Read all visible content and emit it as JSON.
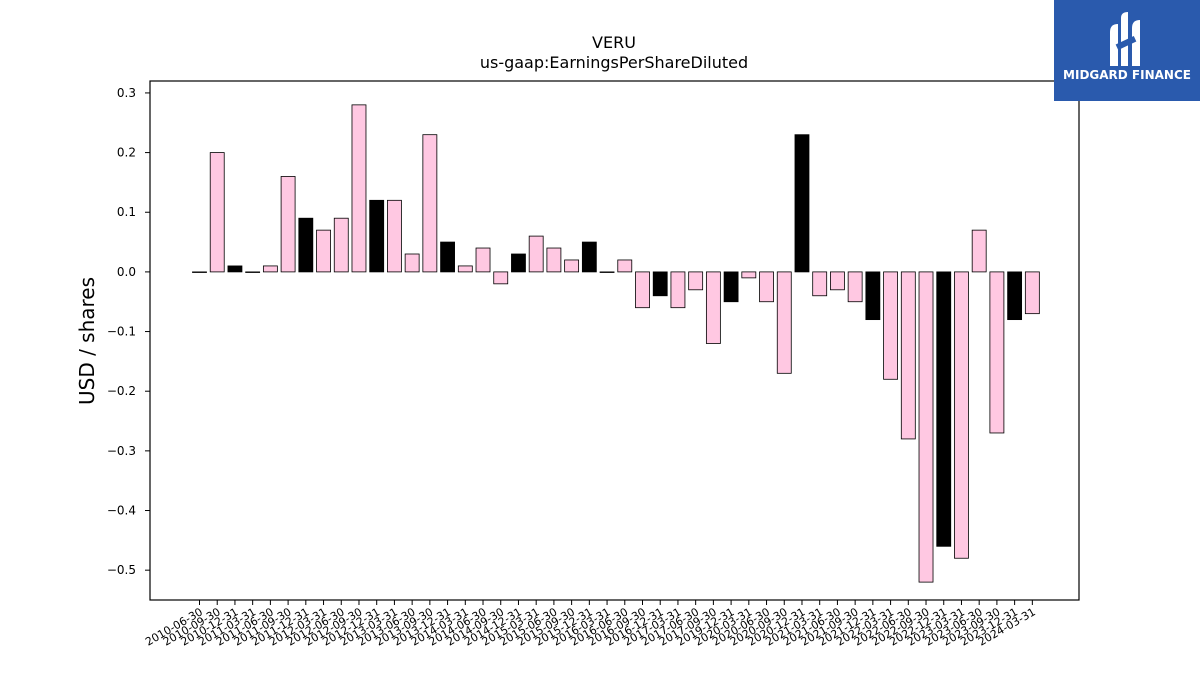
{
  "logo": {
    "text": "MIDGARD FINANCE",
    "bg_color": "#2a5aad"
  },
  "chart_data": {
    "type": "bar",
    "title": "VERU",
    "subtitle": "us-gaap:EarningsPerShareDiluted",
    "ylabel": "USD / shares",
    "xlabel": "",
    "ylim": [
      -0.55,
      0.32
    ],
    "yticks": [
      0.3,
      0.2,
      0.1,
      0.0,
      -0.1,
      -0.2,
      -0.3,
      -0.4,
      -0.5
    ],
    "ytick_labels": [
      "0.3",
      "0.2",
      "0.1",
      "0.0",
      "−0.1",
      "−0.2",
      "−0.3",
      "−0.4",
      "−0.5"
    ],
    "grid": false,
    "colors": {
      "quarterly": "#ffc8e2",
      "annual": "#000000",
      "edge": "#000000"
    },
    "categories": [
      "2010-06-30",
      "2010-09-30",
      "2010-12-31",
      "2011-03-31",
      "2011-06-30",
      "2011-09-30",
      "2011-12-31",
      "2012-03-31",
      "2012-06-30",
      "2012-09-30",
      "2012-12-31",
      "2013-03-31",
      "2013-06-30",
      "2013-09-30",
      "2013-12-31",
      "2014-03-31",
      "2014-06-30",
      "2014-09-30",
      "2014-12-31",
      "2015-03-31",
      "2015-06-30",
      "2015-09-30",
      "2015-12-31",
      "2016-03-31",
      "2016-06-30",
      "2016-09-30",
      "2016-12-31",
      "2017-03-31",
      "2017-06-30",
      "2017-09-30",
      "2019-12-31",
      "2020-03-31",
      "2020-06-30",
      "2020-09-30",
      "2020-12-31",
      "2021-03-31",
      "2021-06-30",
      "2021-09-30",
      "2021-12-31",
      "2022-03-31",
      "2022-06-30",
      "2022-09-30",
      "2022-12-31",
      "2023-03-31",
      "2023-06-30",
      "2023-09-30",
      "2023-12-31",
      "2024-03-31"
    ],
    "values": [
      0.0,
      0.2,
      0.01,
      0.0,
      0.01,
      0.16,
      0.09,
      0.07,
      0.09,
      0.28,
      0.12,
      0.12,
      0.03,
      0.23,
      0.05,
      0.01,
      0.04,
      -0.02,
      0.03,
      0.06,
      0.04,
      0.02,
      0.05,
      0.0,
      0.02,
      -0.06,
      -0.04,
      -0.06,
      -0.03,
      -0.12,
      -0.05,
      -0.01,
      -0.05,
      -0.17,
      0.23,
      -0.04,
      -0.03,
      -0.05,
      -0.08,
      -0.18,
      -0.28,
      -0.52,
      -0.46,
      -0.48,
      0.07,
      -0.27,
      -0.08,
      -0.07
    ],
    "annual": [
      false,
      false,
      true,
      false,
      false,
      false,
      true,
      false,
      false,
      false,
      true,
      false,
      false,
      false,
      true,
      false,
      false,
      false,
      true,
      false,
      false,
      false,
      true,
      false,
      false,
      false,
      true,
      false,
      false,
      false,
      true,
      false,
      false,
      false,
      true,
      false,
      false,
      false,
      true,
      false,
      false,
      false,
      true,
      false,
      false,
      false,
      true,
      false
    ]
  }
}
